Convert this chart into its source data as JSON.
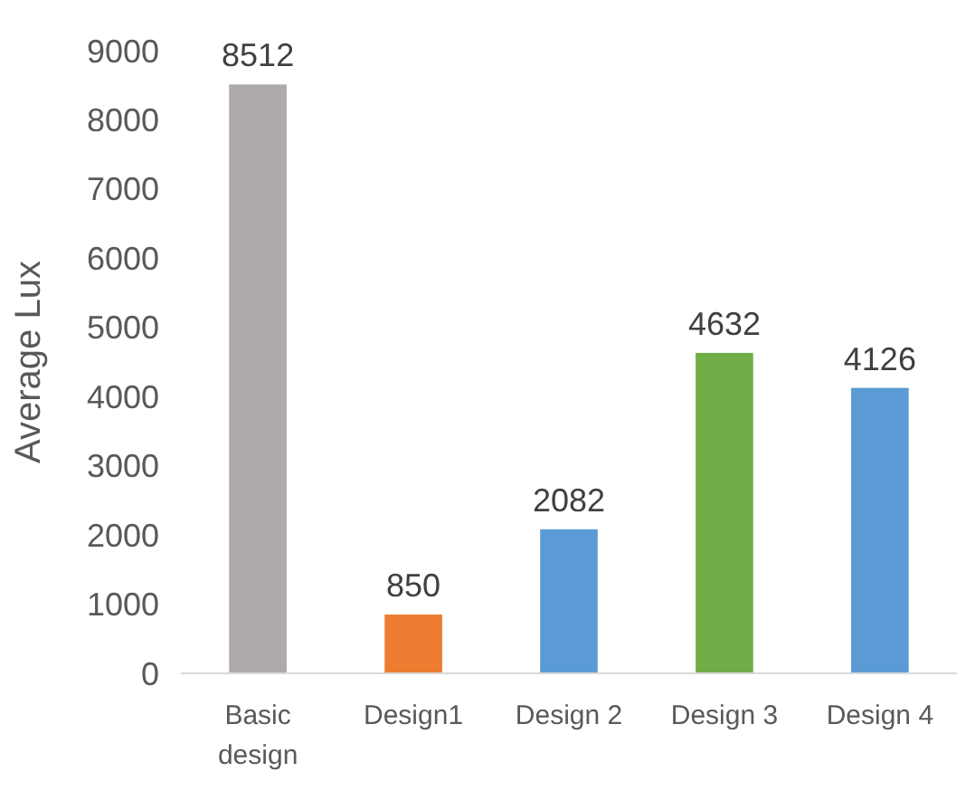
{
  "chart_data": {
    "type": "bar",
    "ylabel": "Average Lux",
    "categories": [
      "Basic design",
      "Design1",
      "Design 2",
      "Design 3",
      "Design 4"
    ],
    "values": [
      8512,
      850,
      2082,
      4632,
      4126
    ],
    "colors": [
      "#aeaaaa",
      "#ed7d31",
      "#5b9bd5",
      "#70ad47",
      "#5b9bd5"
    ],
    "ylim": [
      0,
      9000
    ],
    "yticks": [
      0,
      1000,
      2000,
      3000,
      4000,
      5000,
      6000,
      7000,
      8000,
      9000
    ],
    "data_labels": true,
    "grid": false
  }
}
